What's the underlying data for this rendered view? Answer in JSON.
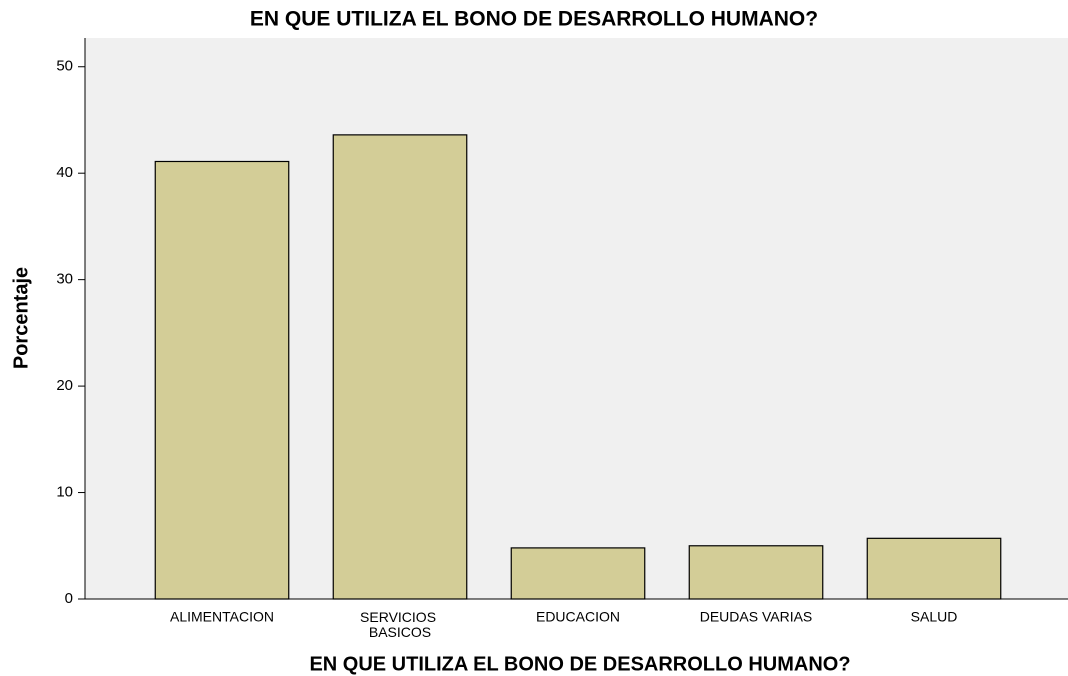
{
  "chart_data": {
    "type": "bar",
    "title": "EN QUE UTILIZA EL BONO DE DESARROLLO HUMANO?",
    "x_label": "EN QUE UTILIZA EL BONO DE DESARROLLO HUMANO?",
    "y_label": "Porcentaje",
    "categories": [
      "ALIMENTACION",
      "SERVICIOS BASICOS",
      "EDUCACION",
      "DEUDAS VARIAS",
      "SALUD"
    ],
    "values": [
      41.1,
      43.6,
      4.8,
      5.0,
      5.7
    ],
    "color": "#d3cd97",
    "ylim": [
      0,
      52.7
    ],
    "yticks": [
      0,
      10,
      20,
      30,
      40,
      50
    ],
    "grid": false
  }
}
